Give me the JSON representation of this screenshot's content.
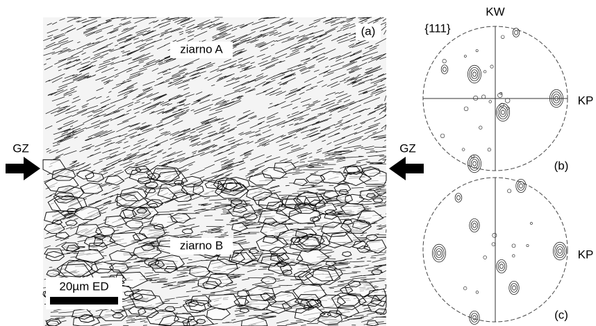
{
  "panel_a": {
    "label": "(a)",
    "grain_a": "ziarno A",
    "grain_b": "ziarno B",
    "scale_bar": "20µm ED"
  },
  "arrows": {
    "left": "GZ",
    "right": "GZ"
  },
  "pole_figures": {
    "plane": "{111}",
    "axis_top": "KW",
    "b": {
      "label": "(b)",
      "axis_right": "KP"
    },
    "c": {
      "label": "(c)",
      "axis_right": "KP"
    }
  }
}
